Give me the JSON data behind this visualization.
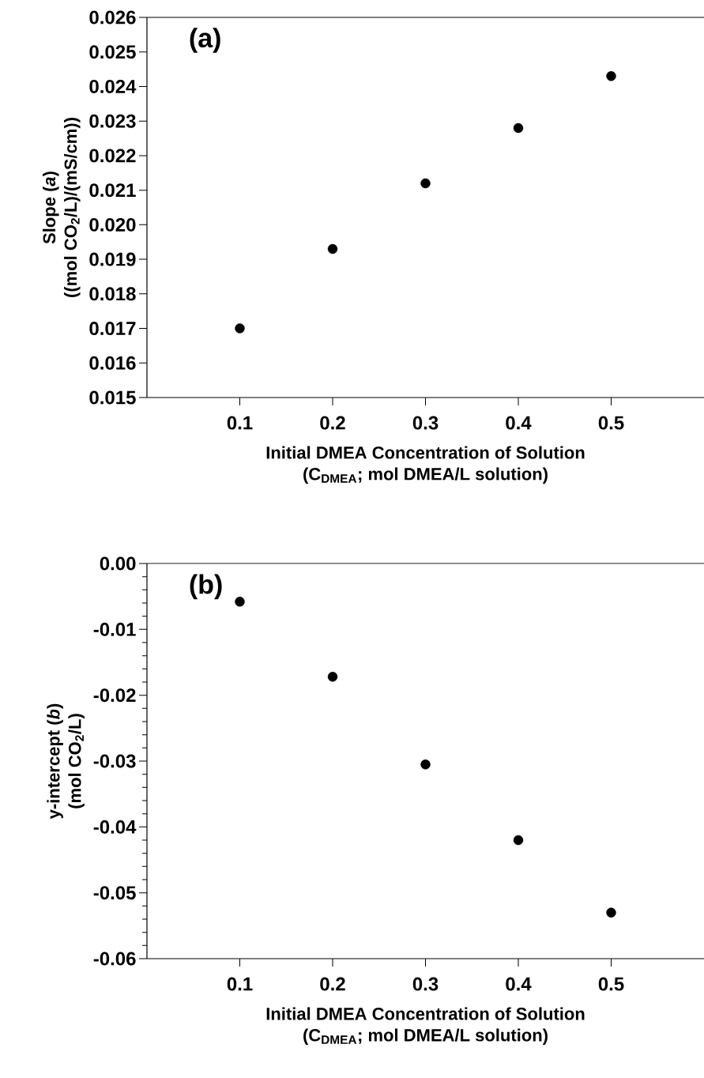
{
  "chart_data": [
    {
      "type": "scatter",
      "x": [
        0.1,
        0.2,
        0.3,
        0.4,
        0.5
      ],
      "values": [
        0.017,
        0.0193,
        0.0212,
        0.0228,
        0.0243
      ],
      "color": "#000000",
      "xlim": [
        0,
        0.6
      ],
      "xticks": [
        0.1,
        0.2,
        0.3,
        0.4,
        0.5
      ],
      "ylim": [
        0.015,
        0.026
      ],
      "yticks": [
        {
          "value": 0.015,
          "label": "0.015"
        },
        {
          "value": 0.016,
          "label": "0.016"
        },
        {
          "value": 0.017,
          "label": "0.017"
        },
        {
          "value": 0.018,
          "label": "0.018"
        },
        {
          "value": 0.019,
          "label": "0.019"
        },
        {
          "value": 0.02,
          "label": "0.020"
        },
        {
          "value": 0.021,
          "label": "0.021"
        },
        {
          "value": 0.022,
          "label": "0.022"
        },
        {
          "value": 0.023,
          "label": "0.023"
        },
        {
          "value": 0.024,
          "label": "0.024"
        },
        {
          "value": 0.025,
          "label": "0.025"
        },
        {
          "value": 0.026,
          "label": "0.026"
        }
      ],
      "xlabel": "Initial DMEA Concentration of Solution\n(C$_{DMEA}$; mol DMEA/L solution)",
      "ylabel": "Slope (*a*)\n((mol CO$_{2}$/L)/(mS/cm))",
      "annotations": [
        "(a)"
      ]
    },
    {
      "type": "scatter",
      "x": [
        0.1,
        0.2,
        0.3,
        0.4,
        0.5
      ],
      "values": [
        -0.0058,
        -0.0172,
        -0.0305,
        -0.042,
        -0.053
      ],
      "color": "#000000",
      "xlim": [
        0,
        0.6
      ],
      "xticks": [
        0.1,
        0.2,
        0.3,
        0.4,
        0.5
      ],
      "ylim": [
        -0.06,
        0.0
      ],
      "yticks": [
        {
          "value": -0.06,
          "label": "-0.06"
        },
        {
          "value": -0.058,
          "label": null
        },
        {
          "value": -0.056,
          "label": null
        },
        {
          "value": -0.054,
          "label": null
        },
        {
          "value": -0.052,
          "label": null
        },
        {
          "value": -0.05,
          "label": "-0.05"
        },
        {
          "value": -0.048,
          "label": null
        },
        {
          "value": -0.046,
          "label": null
        },
        {
          "value": -0.044,
          "label": null
        },
        {
          "value": -0.042,
          "label": null
        },
        {
          "value": -0.04,
          "label": "-0.04"
        },
        {
          "value": -0.038,
          "label": null
        },
        {
          "value": -0.036,
          "label": null
        },
        {
          "value": -0.034,
          "label": null
        },
        {
          "value": -0.032,
          "label": null
        },
        {
          "value": -0.03,
          "label": "-0.03"
        },
        {
          "value": -0.028,
          "label": null
        },
        {
          "value": -0.026,
          "label": null
        },
        {
          "value": -0.024,
          "label": null
        },
        {
          "value": -0.022,
          "label": null
        },
        {
          "value": -0.02,
          "label": "-0.02"
        },
        {
          "value": -0.018,
          "label": null
        },
        {
          "value": -0.016,
          "label": null
        },
        {
          "value": -0.014,
          "label": null
        },
        {
          "value": -0.012,
          "label": null
        },
        {
          "value": -0.01,
          "label": "-0.01"
        },
        {
          "value": -0.008,
          "label": null
        },
        {
          "value": -0.006,
          "label": null
        },
        {
          "value": -0.004,
          "label": null
        },
        {
          "value": -0.002,
          "label": null
        },
        {
          "value": 0.0,
          "label": "0.00"
        }
      ],
      "xlabel": "Initial DMEA Concentration of Solution\n(C$_{DMEA}$; mol DMEA/L solution)",
      "ylabel": "y-intercept (*b*)\n(mol CO$_{2}$/L)",
      "annotations": [
        "(b)"
      ]
    }
  ]
}
